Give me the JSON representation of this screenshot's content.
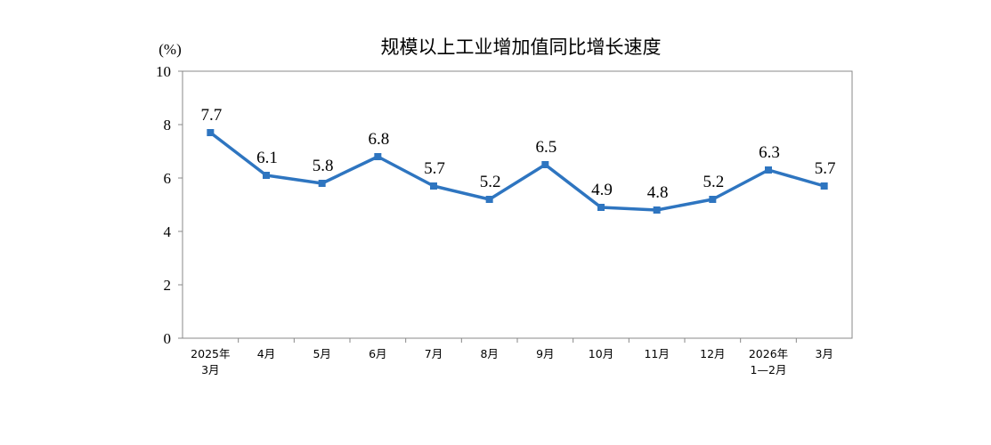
{
  "chart_data": {
    "type": "line",
    "title": "规模以上工业增加值同比增长速度",
    "ylabel": "(%)",
    "xlabel": "",
    "ylim": [
      0,
      10
    ],
    "yticks": [
      0,
      2,
      4,
      6,
      8,
      10
    ],
    "grid": false,
    "categories": [
      [
        "2025年",
        "3月"
      ],
      [
        "4月"
      ],
      [
        "5月"
      ],
      [
        "6月"
      ],
      [
        "7月"
      ],
      [
        "8月"
      ],
      [
        "9月"
      ],
      [
        "10月"
      ],
      [
        "11月"
      ],
      [
        "12月"
      ],
      [
        "2026年",
        "1—2月"
      ],
      [
        "3月"
      ]
    ],
    "series": [
      {
        "values": [
          7.7,
          6.1,
          5.8,
          6.8,
          5.7,
          5.2,
          6.5,
          4.9,
          4.8,
          5.2,
          6.3,
          5.7
        ],
        "labels": [
          "7.7",
          "6.1",
          "5.8",
          "6.8",
          "5.7",
          "5.2",
          "6.5",
          "4.9",
          "4.8",
          "5.2",
          "6.3",
          "5.7"
        ],
        "color": "#2e75c0"
      }
    ],
    "axis_color": "#888888"
  }
}
